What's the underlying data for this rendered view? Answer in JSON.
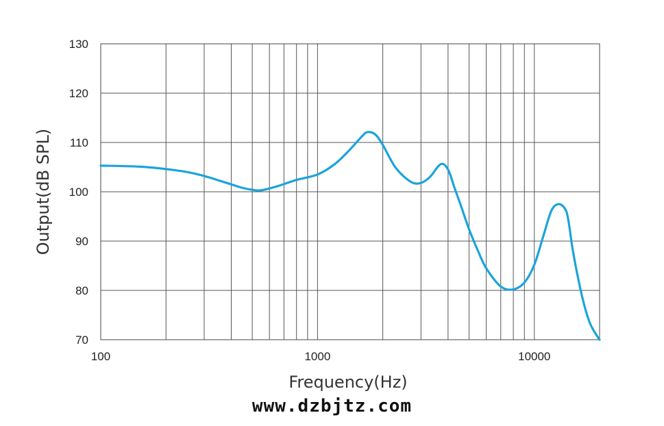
{
  "chart_data": {
    "type": "line",
    "title": "",
    "xlabel": "Frequency(Hz)",
    "ylabel": "Output(dB SPL)",
    "x_scale": "log",
    "xlim": [
      100,
      20000
    ],
    "ylim": [
      70,
      130
    ],
    "grid": true,
    "xticks": [
      100,
      1000,
      10000
    ],
    "xtick_labels": [
      "100",
      "1000",
      "10000"
    ],
    "yticks": [
      70,
      80,
      90,
      100,
      110,
      120,
      130
    ],
    "ytick_labels": [
      "70",
      "80",
      "90",
      "100",
      "110",
      "120",
      "130"
    ],
    "series": [
      {
        "color": "#1ba3dc",
        "x": [
          100,
          150,
          200,
          250,
          300,
          350,
          400,
          450,
          500,
          550,
          650,
          800,
          1000,
          1200,
          1400,
          1600,
          1700,
          1850,
          2000,
          2300,
          2700,
          3000,
          3300,
          3700,
          4000,
          4300,
          4600,
          5000,
          5500,
          6000,
          7000,
          8000,
          9000,
          10000,
          11000,
          12000,
          13000,
          14000,
          14500,
          15000,
          16000,
          17000,
          18000,
          19000,
          20000
        ],
        "y": [
          105.3,
          105.1,
          104.6,
          104.0,
          103.2,
          102.3,
          101.5,
          100.8,
          100.4,
          100.3,
          101.1,
          102.4,
          103.5,
          105.6,
          108.4,
          111.2,
          112.1,
          111.6,
          109.5,
          104.8,
          102.0,
          101.8,
          103.0,
          105.6,
          104.5,
          100.6,
          97.0,
          92.4,
          88.0,
          84.5,
          80.8,
          80.2,
          81.6,
          85.2,
          91.0,
          96.2,
          97.5,
          96.2,
          93.0,
          88.5,
          82.0,
          77.0,
          73.5,
          71.5,
          70.0
        ]
      }
    ]
  },
  "watermark": "www.dzbjtz.com",
  "colors": {
    "grid": "#555555",
    "frame": "#444444",
    "line": "#1ba3dc"
  }
}
